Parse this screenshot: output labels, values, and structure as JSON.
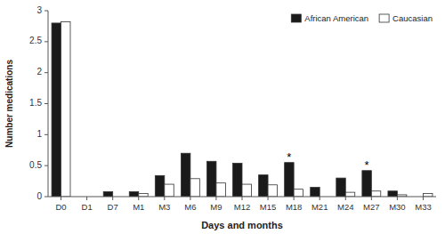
{
  "chart_data": {
    "type": "bar",
    "categories": [
      "D0",
      "D1",
      "D7",
      "M1",
      "M3",
      "M6",
      "M9",
      "M12",
      "M15",
      "M18",
      "M21",
      "M24",
      "M27",
      "M30",
      "M33"
    ],
    "series": [
      {
        "name": "African American",
        "color": "#1a1a1a",
        "values": [
          2.8,
          0.0,
          0.08,
          0.08,
          0.34,
          0.7,
          0.57,
          0.54,
          0.35,
          0.55,
          0.15,
          0.3,
          0.42,
          0.09,
          0.0
        ]
      },
      {
        "name": "Caucasian",
        "color": "#ffffff",
        "values": [
          2.82,
          0.0,
          0.0,
          0.05,
          0.2,
          0.29,
          0.22,
          0.2,
          0.19,
          0.12,
          0.0,
          0.07,
          0.09,
          0.03,
          0.05
        ]
      }
    ],
    "x_label": "Days and months",
    "y_label": "Number medications",
    "ylim": [
      0,
      3
    ],
    "yticks": [
      0,
      0.5,
      1,
      1.5,
      2,
      2.5,
      3
    ],
    "annotations": [
      {
        "text": "*",
        "category": "M18",
        "series": "African American"
      },
      {
        "text": "*",
        "category": "M27",
        "series": "African American"
      }
    ],
    "legend": "upper-right",
    "grid": false
  }
}
